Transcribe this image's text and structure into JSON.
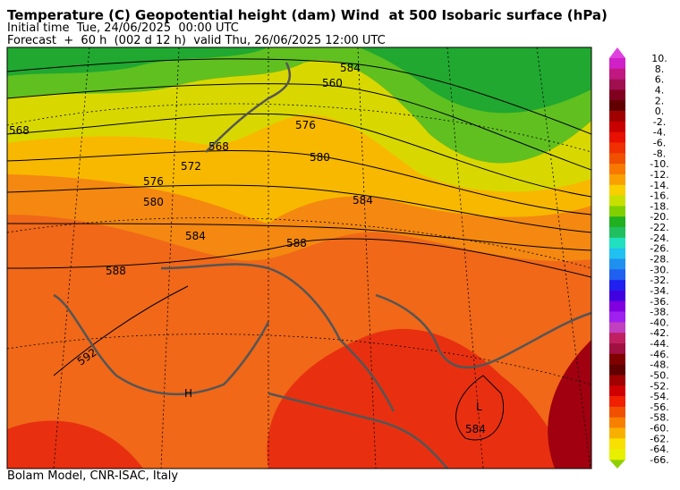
{
  "header": {
    "title": "Temperature (C) Geopotential height (dam) Wind  at 500 Isobaric surface (hPa)",
    "initial_time": "Initial time  Tue, 24/06/2025  00:00 UTC",
    "forecast": "Forecast  +  60 h  (002 d 12 h)  valid Thu, 26/06/2025 12:00 UTC"
  },
  "map": {
    "contour_labels": [
      "584",
      "560",
      "568",
      "576",
      "568",
      "572",
      "576",
      "580",
      "580",
      "584",
      "584",
      "588",
      "588",
      "592",
      "H",
      "L",
      "584"
    ]
  },
  "colorbar": {
    "labels": [
      "10.",
      "8.",
      "6.",
      "4.",
      "2.",
      "0.",
      "-2.",
      "-4.",
      "-6.",
      "-8.",
      "-10.",
      "-12.",
      "-14.",
      "-16.",
      "-18.",
      "-20.",
      "-22.",
      "-24.",
      "-26.",
      "-28.",
      "-30.",
      "-32.",
      "-34.",
      "-36.",
      "-38.",
      "-40.",
      "-42.",
      "-44.",
      "-46.",
      "-48.",
      "-50.",
      "-52.",
      "-54.",
      "-56.",
      "-58.",
      "-60.",
      "-62.",
      "-64.",
      "-66."
    ],
    "colors": [
      "#d020c8",
      "#c01880",
      "#a01050",
      "#800020",
      "#600000",
      "#a00000",
      "#c80000",
      "#e81000",
      "#f03000",
      "#f05000",
      "#f87800",
      "#f8a000",
      "#f8d000",
      "#c8e000",
      "#80d000",
      "#20b020",
      "#20c060",
      "#20e0c0",
      "#20c0f0",
      "#2090f0",
      "#2060f0",
      "#2020f0",
      "#4000e0",
      "#8000e0",
      "#a020f0",
      "#c040c0",
      "#c02060",
      "#a01040",
      "#800000",
      "#600000",
      "#a00000",
      "#d00000",
      "#f02000",
      "#f05000",
      "#f88000",
      "#f8b000",
      "#f8e000",
      "#e8f000"
    ],
    "top_color": "#e040e0",
    "bottom_color": "#90d000"
  },
  "footer": "Bolam Model, CNR-ISAC, Italy"
}
